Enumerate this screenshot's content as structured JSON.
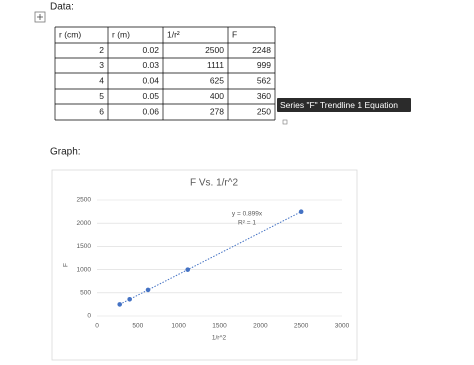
{
  "labels": {
    "data_heading": "Data:",
    "graph_heading": "Graph:",
    "tooltip": "Series \"F\" Trendline 1 Equation"
  },
  "table": {
    "header": [
      "r (cm)",
      "r (m)",
      "1/r²",
      "F"
    ],
    "rows": [
      [
        "2",
        "0.02",
        "2500",
        "2248"
      ],
      [
        "3",
        "0.03",
        "1111",
        "999"
      ],
      [
        "4",
        "0.04",
        "625",
        "562"
      ],
      [
        "5",
        "0.05",
        "400",
        "360"
      ],
      [
        "6",
        "0.06",
        "278",
        "250"
      ]
    ]
  },
  "chart_data": {
    "type": "scatter",
    "title": "F Vs. 1/r^2",
    "x_label": "1/r^2",
    "y_label": "F",
    "series": [
      {
        "color": "#4472c4",
        "x": [
          2500,
          1111,
          625,
          400,
          278
        ],
        "values": [
          2248,
          999,
          562,
          360,
          250
        ]
      }
    ],
    "xlim": [
      0,
      3000
    ],
    "xticks": [
      0,
      500,
      1000,
      1500,
      2000,
      2500,
      3000
    ],
    "ylim": [
      0,
      2500
    ],
    "yticks": [
      0,
      500,
      1000,
      1500,
      2000,
      2500
    ],
    "grid": true,
    "trendline": {
      "slope": 0.899,
      "equation": "y = 0.899x",
      "r_squared": "R² = 1"
    }
  }
}
